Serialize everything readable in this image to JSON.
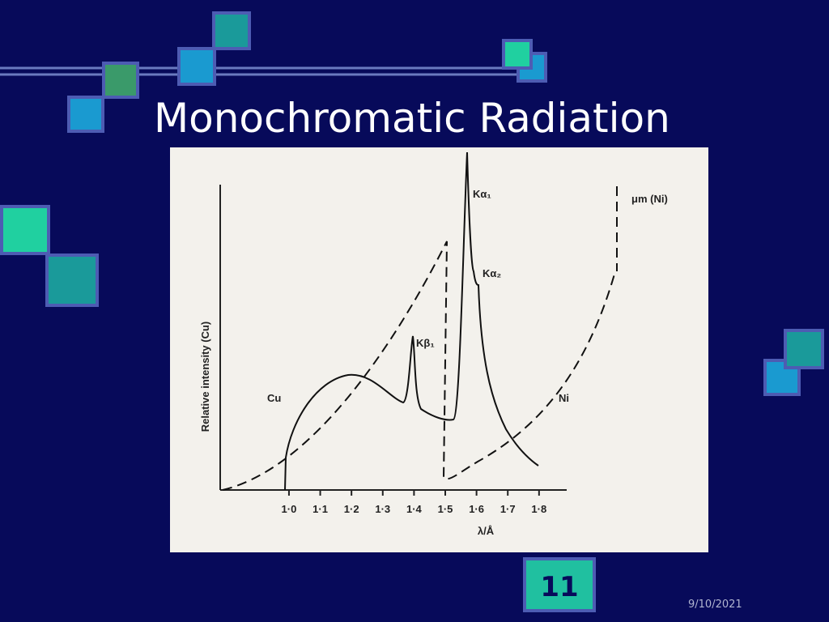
{
  "slide": {
    "title": "Monochromatic Radiation",
    "number": "11",
    "date": "9/10/2021"
  },
  "figure": {
    "y_label": "Relative intensity (Cu)",
    "x_label": "λ/Å",
    "xlim": [
      0.78,
      1.86
    ],
    "xticks": [
      {
        "value": 1.0,
        "label": "1·0"
      },
      {
        "value": 1.1,
        "label": "1·1"
      },
      {
        "value": 1.2,
        "label": "1·2"
      },
      {
        "value": 1.3,
        "label": "1·3"
      },
      {
        "value": 1.4,
        "label": "1·4"
      },
      {
        "value": 1.5,
        "label": "1·5"
      },
      {
        "value": 1.6,
        "label": "1·6"
      },
      {
        "value": 1.7,
        "label": "1·7"
      },
      {
        "value": 1.8,
        "label": "1·8"
      }
    ],
    "annotations": {
      "cu": "Cu",
      "ni": "Ni",
      "ka1": "Kα₁",
      "ka2": "Kα₂",
      "kb1": "Kβ₁",
      "mu": "μm (Ni)"
    }
  }
}
